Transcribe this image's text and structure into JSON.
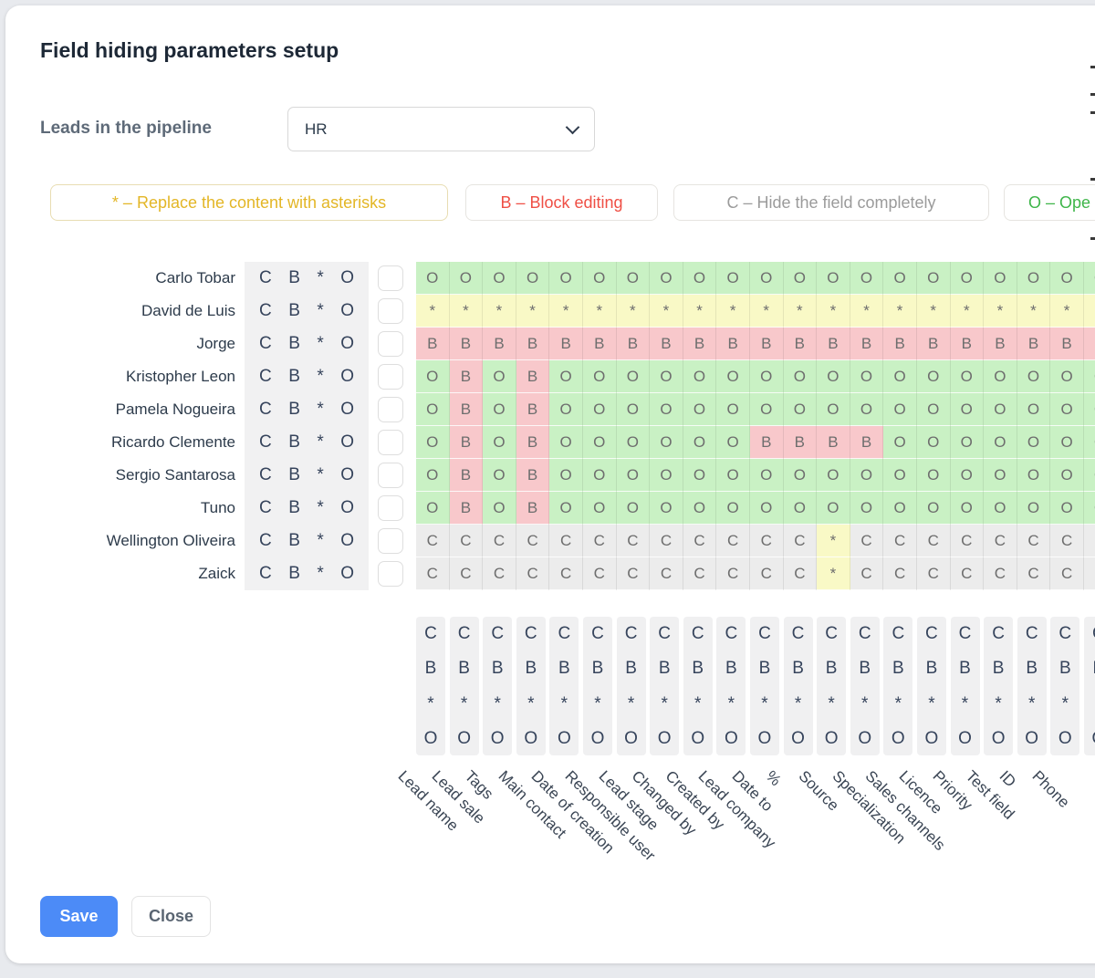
{
  "title": "Field hiding parameters setup",
  "pipeline": {
    "label": "Leads in the pipeline",
    "value": "HR"
  },
  "legend": [
    {
      "symbol": "*",
      "text": "Replace the content with asterisks",
      "color": "#e3b626"
    },
    {
      "symbol": "B",
      "text": "Block editing",
      "color": "#ef4f45"
    },
    {
      "symbol": "C",
      "text": "Hide the field completely",
      "color": "#9b9b9b"
    },
    {
      "symbol": "O",
      "text": "Ope",
      "color": "#3eb549"
    }
  ],
  "controls": [
    "C",
    "B",
    "*",
    "O"
  ],
  "colors": {
    "cell_O": "#c9f1c4",
    "cell_asterisk": "#f9f9c6",
    "cell_B": "#f8c8cb",
    "cell_C": "#ececec",
    "accent_save": "#4c8bf7"
  },
  "matrix": {
    "columns": [
      "Lead name",
      "Lead sale",
      "Tags",
      "Main contact",
      "Date of creation",
      "Responsible user",
      "Lead stage",
      "Changed by",
      "Created by",
      "Lead company",
      "Date to",
      "%",
      "Source",
      "Specialization",
      "Sales channels",
      "Licence",
      "Priority",
      "Test field",
      "ID",
      "Phone",
      ""
    ],
    "users": [
      {
        "name": "Carlo Tobar",
        "cells": "OOOOOOOOOOOOOOOOOOOOO"
      },
      {
        "name": "David de Luis",
        "cells": "*********************"
      },
      {
        "name": "Jorge",
        "cells": "BBBBBBBBBBBBBBBBBBBBB"
      },
      {
        "name": "Kristopher Leon",
        "cells": "OBOBOOOOOOOOOOOOOOOOO"
      },
      {
        "name": "Pamela Nogueira",
        "cells": "OBOBOOOOOOOOOOOOOOOOO"
      },
      {
        "name": "Ricardo Clemente",
        "cells": "OBOBOOOOOOBBBBOOOOOOO"
      },
      {
        "name": "Sergio Santarosa",
        "cells": "OBOBOOOOOOOOOOOOOOOOO"
      },
      {
        "name": "Tuno",
        "cells": "OBOBOOOOOOOOOOOOOOOOO"
      },
      {
        "name": "Wellington Oliveira",
        "cells": "CCCCCCCCCCCC*CCCCCCCC"
      },
      {
        "name": "Zaick",
        "cells": "CCCCCCCCCCCC*CCCCCCCC"
      }
    ]
  },
  "footer": {
    "save": "Save",
    "close": "Close"
  }
}
